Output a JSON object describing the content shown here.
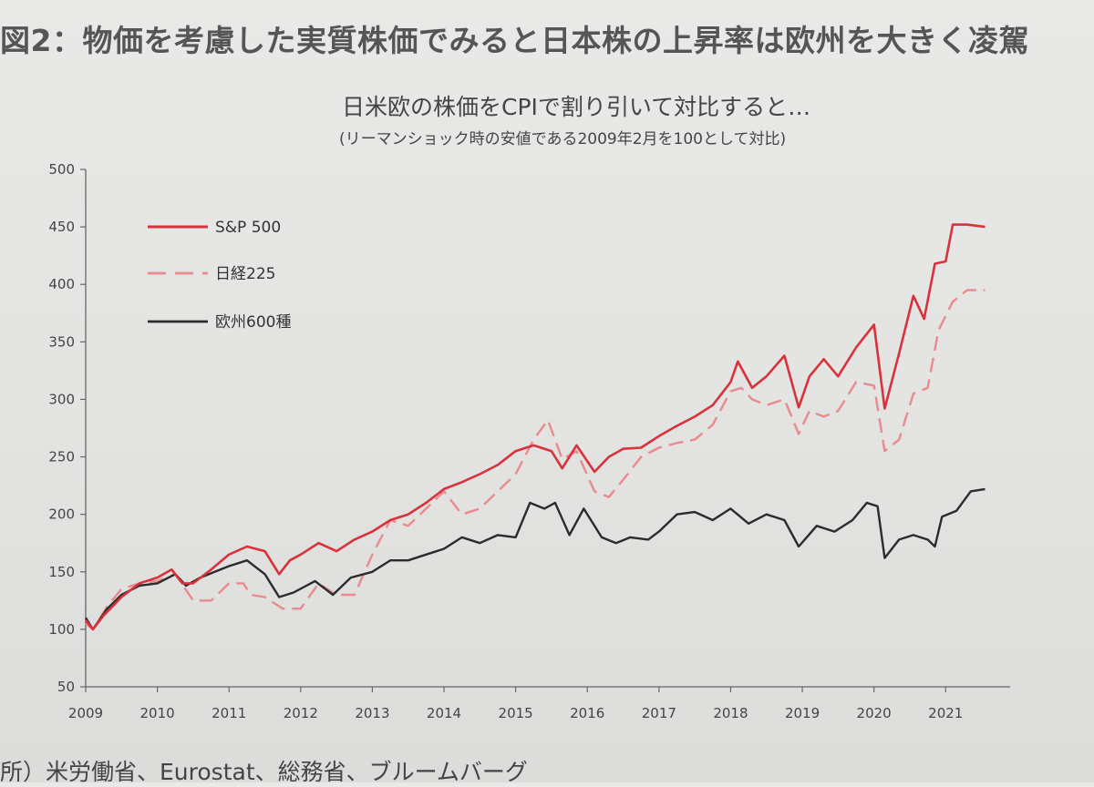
{
  "figure_title": "図2：物価を考慮した実質株価でみると日本株の上昇率は欧州を大きく凌駕",
  "source_note": "所）米労働省、Eurostat、総務省、ブルームバーグ",
  "colors": {
    "sp500": "#d8323c",
    "nikkei": "#e88a8e",
    "europe": "#2b2b2b",
    "axis": "#666666"
  },
  "chart_data": {
    "type": "line",
    "title": "日米欧の株価をCPIで割り引いて対比すると…",
    "subtitle": "(リーマンショック時の安値である2009年2月を100として対比)",
    "ylim": [
      50,
      500
    ],
    "yticks": [
      50,
      100,
      150,
      200,
      250,
      300,
      350,
      400,
      450,
      500
    ],
    "xlim": [
      2009.0,
      2021.9
    ],
    "xticks": [
      2009,
      2010,
      2011,
      2012,
      2013,
      2014,
      2015,
      2016,
      2017,
      2018,
      2019,
      2020,
      2021
    ],
    "legend_position": "top-left",
    "series": [
      {
        "name": "S&P 500",
        "style": "solid",
        "points": [
          [
            2009.0,
            108
          ],
          [
            2009.1,
            100
          ],
          [
            2009.25,
            112
          ],
          [
            2009.5,
            128
          ],
          [
            2009.75,
            140
          ],
          [
            2010.0,
            145
          ],
          [
            2010.2,
            152
          ],
          [
            2010.35,
            140
          ],
          [
            2010.5,
            140
          ],
          [
            2010.75,
            152
          ],
          [
            2011.0,
            165
          ],
          [
            2011.25,
            172
          ],
          [
            2011.5,
            168
          ],
          [
            2011.7,
            148
          ],
          [
            2011.85,
            160
          ],
          [
            2012.0,
            165
          ],
          [
            2012.25,
            175
          ],
          [
            2012.5,
            168
          ],
          [
            2012.75,
            178
          ],
          [
            2013.0,
            185
          ],
          [
            2013.25,
            195
          ],
          [
            2013.5,
            200
          ],
          [
            2013.75,
            210
          ],
          [
            2014.0,
            222
          ],
          [
            2014.25,
            228
          ],
          [
            2014.5,
            235
          ],
          [
            2014.75,
            243
          ],
          [
            2015.0,
            255
          ],
          [
            2015.25,
            260
          ],
          [
            2015.5,
            255
          ],
          [
            2015.65,
            240
          ],
          [
            2015.85,
            260
          ],
          [
            2016.1,
            237
          ],
          [
            2016.3,
            250
          ],
          [
            2016.5,
            257
          ],
          [
            2016.75,
            258
          ],
          [
            2017.0,
            268
          ],
          [
            2017.25,
            277
          ],
          [
            2017.5,
            285
          ],
          [
            2017.75,
            295
          ],
          [
            2018.0,
            315
          ],
          [
            2018.1,
            333
          ],
          [
            2018.3,
            310
          ],
          [
            2018.5,
            320
          ],
          [
            2018.75,
            338
          ],
          [
            2018.95,
            293
          ],
          [
            2019.1,
            320
          ],
          [
            2019.3,
            335
          ],
          [
            2019.5,
            320
          ],
          [
            2019.75,
            345
          ],
          [
            2020.0,
            365
          ],
          [
            2020.15,
            292
          ],
          [
            2020.35,
            340
          ],
          [
            2020.55,
            390
          ],
          [
            2020.7,
            370
          ],
          [
            2020.85,
            418
          ],
          [
            2021.0,
            420
          ],
          [
            2021.1,
            452
          ],
          [
            2021.3,
            452
          ],
          [
            2021.55,
            450
          ]
        ]
      },
      {
        "name": "日経225",
        "style": "dashed",
        "points": [
          [
            2009.0,
            105
          ],
          [
            2009.1,
            100
          ],
          [
            2009.3,
            120
          ],
          [
            2009.5,
            135
          ],
          [
            2009.75,
            140
          ],
          [
            2010.0,
            142
          ],
          [
            2010.25,
            148
          ],
          [
            2010.5,
            125
          ],
          [
            2010.75,
            125
          ],
          [
            2011.0,
            140
          ],
          [
            2011.2,
            140
          ],
          [
            2011.3,
            130
          ],
          [
            2011.5,
            128
          ],
          [
            2011.75,
            118
          ],
          [
            2012.0,
            118
          ],
          [
            2012.25,
            140
          ],
          [
            2012.5,
            130
          ],
          [
            2012.75,
            130
          ],
          [
            2013.0,
            165
          ],
          [
            2013.25,
            195
          ],
          [
            2013.5,
            190
          ],
          [
            2013.75,
            205
          ],
          [
            2014.0,
            220
          ],
          [
            2014.25,
            200
          ],
          [
            2014.5,
            205
          ],
          [
            2014.75,
            220
          ],
          [
            2015.0,
            235
          ],
          [
            2015.25,
            265
          ],
          [
            2015.45,
            282
          ],
          [
            2015.65,
            248
          ],
          [
            2015.85,
            255
          ],
          [
            2016.1,
            220
          ],
          [
            2016.3,
            215
          ],
          [
            2016.5,
            230
          ],
          [
            2016.75,
            250
          ],
          [
            2017.0,
            258
          ],
          [
            2017.25,
            262
          ],
          [
            2017.5,
            265
          ],
          [
            2017.75,
            278
          ],
          [
            2018.0,
            307
          ],
          [
            2018.15,
            310
          ],
          [
            2018.3,
            300
          ],
          [
            2018.5,
            295
          ],
          [
            2018.75,
            300
          ],
          [
            2018.95,
            270
          ],
          [
            2019.1,
            290
          ],
          [
            2019.3,
            285
          ],
          [
            2019.5,
            290
          ],
          [
            2019.75,
            315
          ],
          [
            2020.0,
            312
          ],
          [
            2020.15,
            255
          ],
          [
            2020.35,
            265
          ],
          [
            2020.55,
            305
          ],
          [
            2020.75,
            310
          ],
          [
            2020.9,
            360
          ],
          [
            2021.1,
            385
          ],
          [
            2021.3,
            395
          ],
          [
            2021.55,
            395
          ]
        ]
      },
      {
        "name": "欧州600種",
        "style": "solid",
        "points": [
          [
            2009.0,
            110
          ],
          [
            2009.1,
            100
          ],
          [
            2009.3,
            118
          ],
          [
            2009.5,
            130
          ],
          [
            2009.75,
            138
          ],
          [
            2010.0,
            140
          ],
          [
            2010.25,
            148
          ],
          [
            2010.4,
            138
          ],
          [
            2010.6,
            145
          ],
          [
            2010.8,
            150
          ],
          [
            2011.0,
            155
          ],
          [
            2011.25,
            160
          ],
          [
            2011.5,
            148
          ],
          [
            2011.7,
            128
          ],
          [
            2011.9,
            132
          ],
          [
            2012.2,
            142
          ],
          [
            2012.45,
            130
          ],
          [
            2012.7,
            145
          ],
          [
            2013.0,
            150
          ],
          [
            2013.25,
            160
          ],
          [
            2013.5,
            160
          ],
          [
            2013.75,
            165
          ],
          [
            2014.0,
            170
          ],
          [
            2014.25,
            180
          ],
          [
            2014.5,
            175
          ],
          [
            2014.75,
            182
          ],
          [
            2015.0,
            180
          ],
          [
            2015.2,
            210
          ],
          [
            2015.4,
            205
          ],
          [
            2015.55,
            210
          ],
          [
            2015.75,
            182
          ],
          [
            2015.95,
            205
          ],
          [
            2016.2,
            180
          ],
          [
            2016.4,
            175
          ],
          [
            2016.6,
            180
          ],
          [
            2016.85,
            178
          ],
          [
            2017.0,
            185
          ],
          [
            2017.25,
            200
          ],
          [
            2017.5,
            202
          ],
          [
            2017.75,
            195
          ],
          [
            2018.0,
            205
          ],
          [
            2018.25,
            192
          ],
          [
            2018.5,
            200
          ],
          [
            2018.75,
            195
          ],
          [
            2018.95,
            172
          ],
          [
            2019.2,
            190
          ],
          [
            2019.45,
            185
          ],
          [
            2019.7,
            195
          ],
          [
            2019.9,
            210
          ],
          [
            2020.05,
            207
          ],
          [
            2020.15,
            162
          ],
          [
            2020.35,
            178
          ],
          [
            2020.55,
            182
          ],
          [
            2020.75,
            178
          ],
          [
            2020.85,
            172
          ],
          [
            2020.95,
            198
          ],
          [
            2021.15,
            203
          ],
          [
            2021.35,
            220
          ],
          [
            2021.55,
            222
          ]
        ]
      }
    ]
  }
}
